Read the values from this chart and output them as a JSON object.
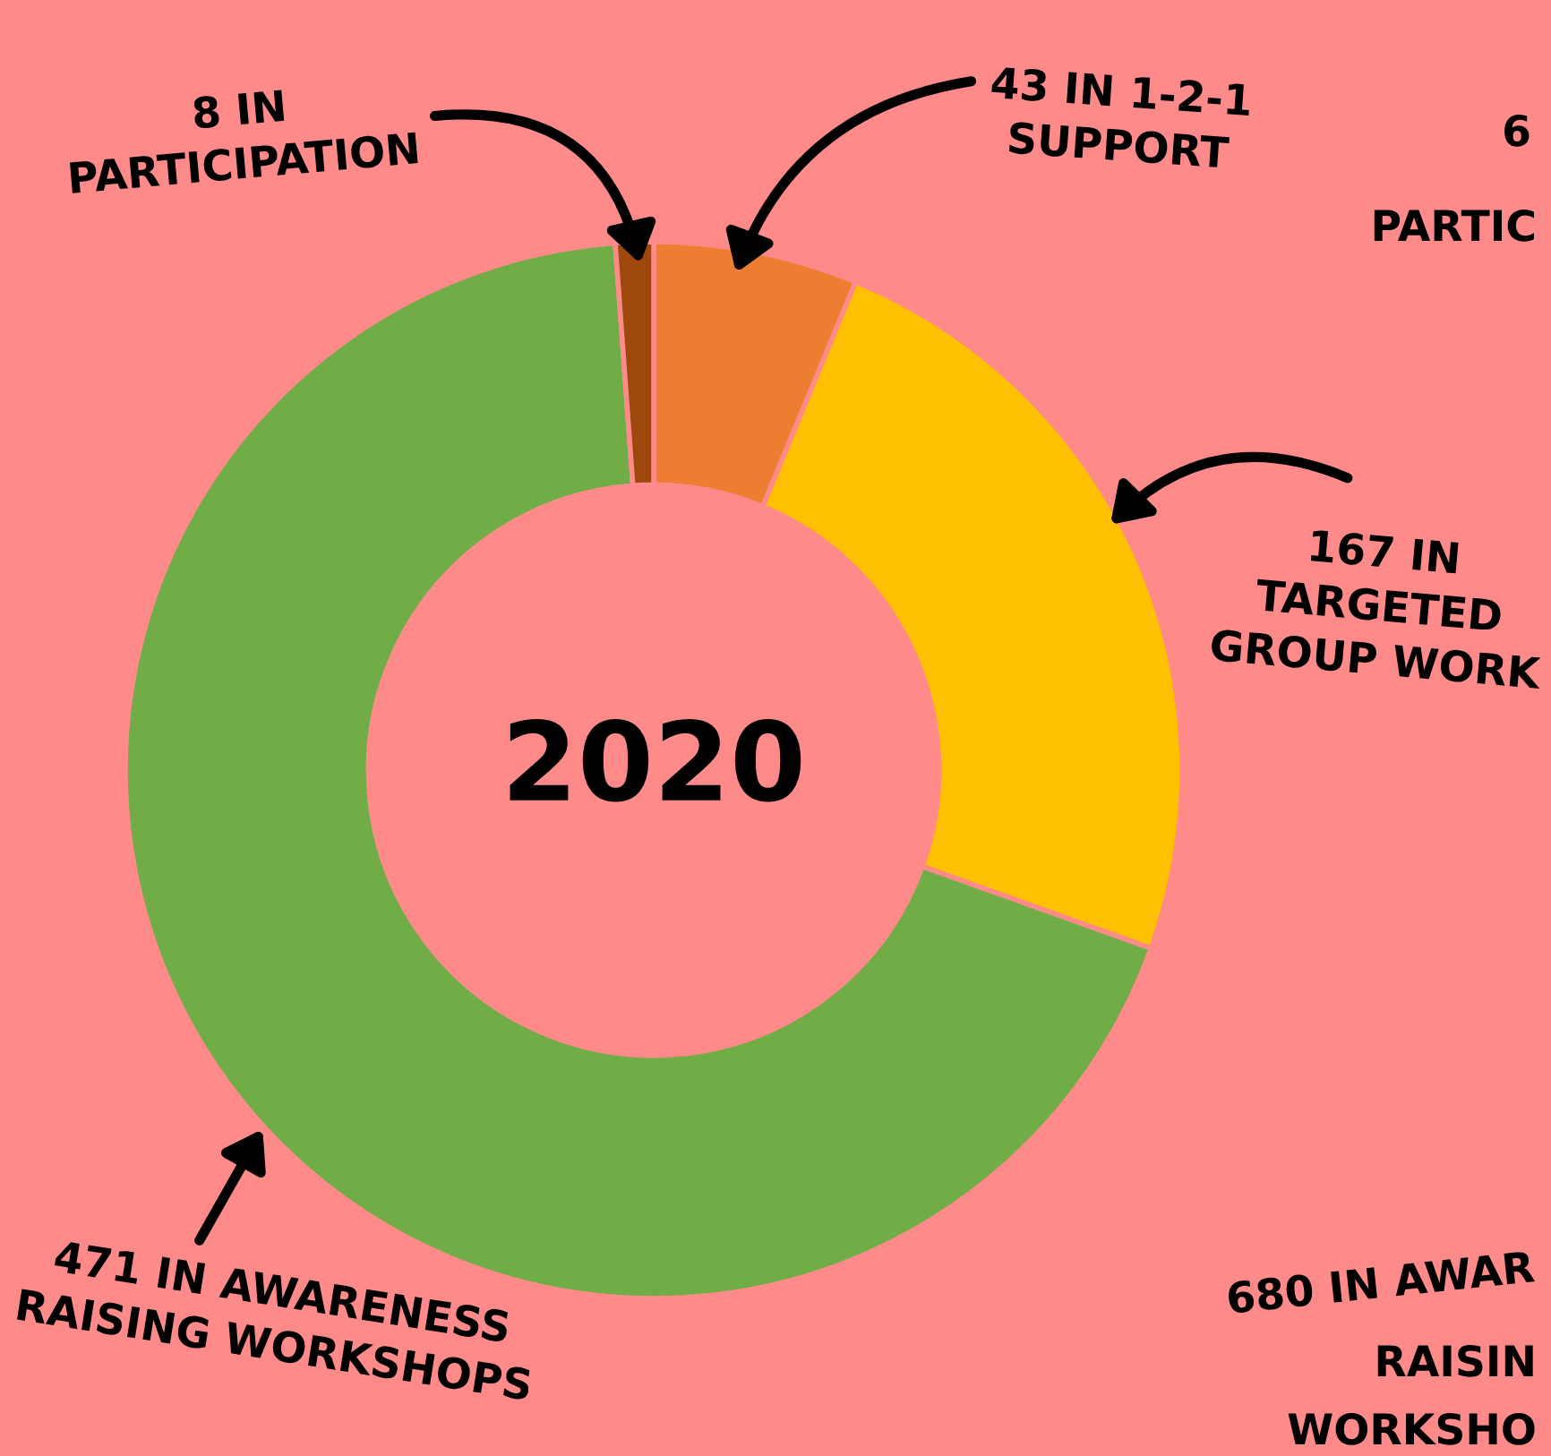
{
  "chart_data": {
    "type": "donut",
    "title": "2020",
    "categories": [
      "43 IN 1-2-1\nSUPPORT",
      "167 IN\nTARGETED\nGROUP WORK",
      "471 IN AWARENESS\nRAISING WORKSHOPS",
      "8 IN\nPARTICIPATION"
    ],
    "values": [
      43,
      167,
      471,
      8
    ],
    "colors": [
      "#ed7d31",
      "#ffc000",
      "#70ad47",
      "#9e480e"
    ],
    "annotations": [
      "6",
      "PARTIC",
      "680 IN AWAR",
      "RAISIN",
      "WORKSHO"
    ]
  }
}
